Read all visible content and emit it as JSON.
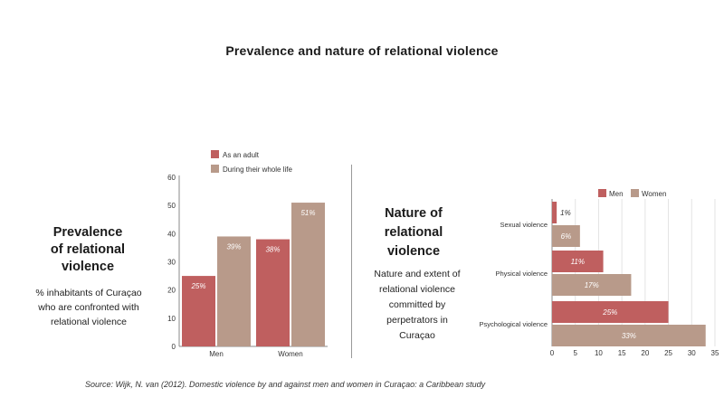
{
  "title": "Prevalence and nature of relational violence",
  "left": {
    "heading_lines": [
      "Prevalence",
      "of relational",
      "violence"
    ],
    "desc_lines": [
      "% inhabitants of Curaçao",
      "who are confronted with",
      "relational violence"
    ]
  },
  "right": {
    "heading_lines": [
      "Nature of",
      "relational",
      "violence"
    ],
    "desc_lines": [
      "Nature and extent of",
      "relational violence",
      "committed by",
      "perpetrators in",
      "Curaçao"
    ]
  },
  "source": "Source: Wijk, N. van (2012). Domestic violence by and against men and women in Curaçao: a Caribbean study",
  "colors": {
    "adult": "#bf5f5f",
    "whole_life": "#b89a8a",
    "men": "#bf5f5f",
    "women": "#b89a8a"
  },
  "chart_data": [
    {
      "type": "bar",
      "categories": [
        "Men",
        "Women"
      ],
      "series": [
        {
          "name": "As an adult",
          "values": [
            25,
            38
          ],
          "labels": [
            "25%",
            "38%"
          ]
        },
        {
          "name": "During their whole life",
          "values": [
            39,
            51
          ],
          "labels": [
            "39%",
            "51%"
          ]
        }
      ],
      "ylim": [
        0,
        60
      ],
      "yticks": [
        0,
        10,
        20,
        30,
        40,
        50,
        60
      ],
      "legend": "top-left"
    },
    {
      "type": "bar",
      "orientation": "horizontal",
      "categories": [
        "Sexual violence",
        "Physical violence",
        "Psychological violence"
      ],
      "series": [
        {
          "name": "Men",
          "values": [
            1,
            11,
            25
          ],
          "labels": [
            "1%",
            "11%",
            "25%"
          ]
        },
        {
          "name": "Women",
          "values": [
            6,
            17,
            33
          ],
          "labels": [
            "6%",
            "17%",
            "33%"
          ]
        }
      ],
      "xlim": [
        0,
        35
      ],
      "xticks": [
        0,
        5,
        10,
        15,
        20,
        25,
        30,
        35
      ],
      "grid": true,
      "legend": "top-right"
    }
  ]
}
